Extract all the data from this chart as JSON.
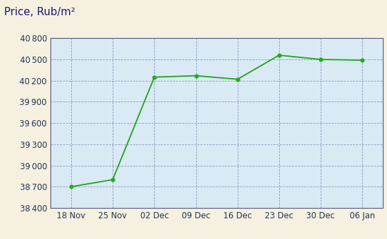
{
  "title": "Price, Rub/m²",
  "x_labels": [
    "18 Nov",
    "25 Nov",
    "02 Dec",
    "09 Dec",
    "16 Dec",
    "23 Dec",
    "30 Dec",
    "06 Jan"
  ],
  "y_values": [
    38700,
    38800,
    40250,
    40270,
    40220,
    40560,
    40500,
    40490
  ],
  "ylim": [
    38400,
    40800
  ],
  "yticks": [
    38400,
    38700,
    39000,
    39300,
    39600,
    39900,
    40200,
    40500,
    40800
  ],
  "line_color": "#22aa22",
  "marker_color": "#22aa22",
  "marker_size": 3.5,
  "line_width": 1.4,
  "bg_plot_color": "#daeaf5",
  "bg_figure_color": "#f5f0e0",
  "grid_color": "#8899bb",
  "title_color": "#1a1a6e",
  "tick_label_color": "#223355",
  "title_fontsize": 11,
  "tick_fontsize": 8.5
}
